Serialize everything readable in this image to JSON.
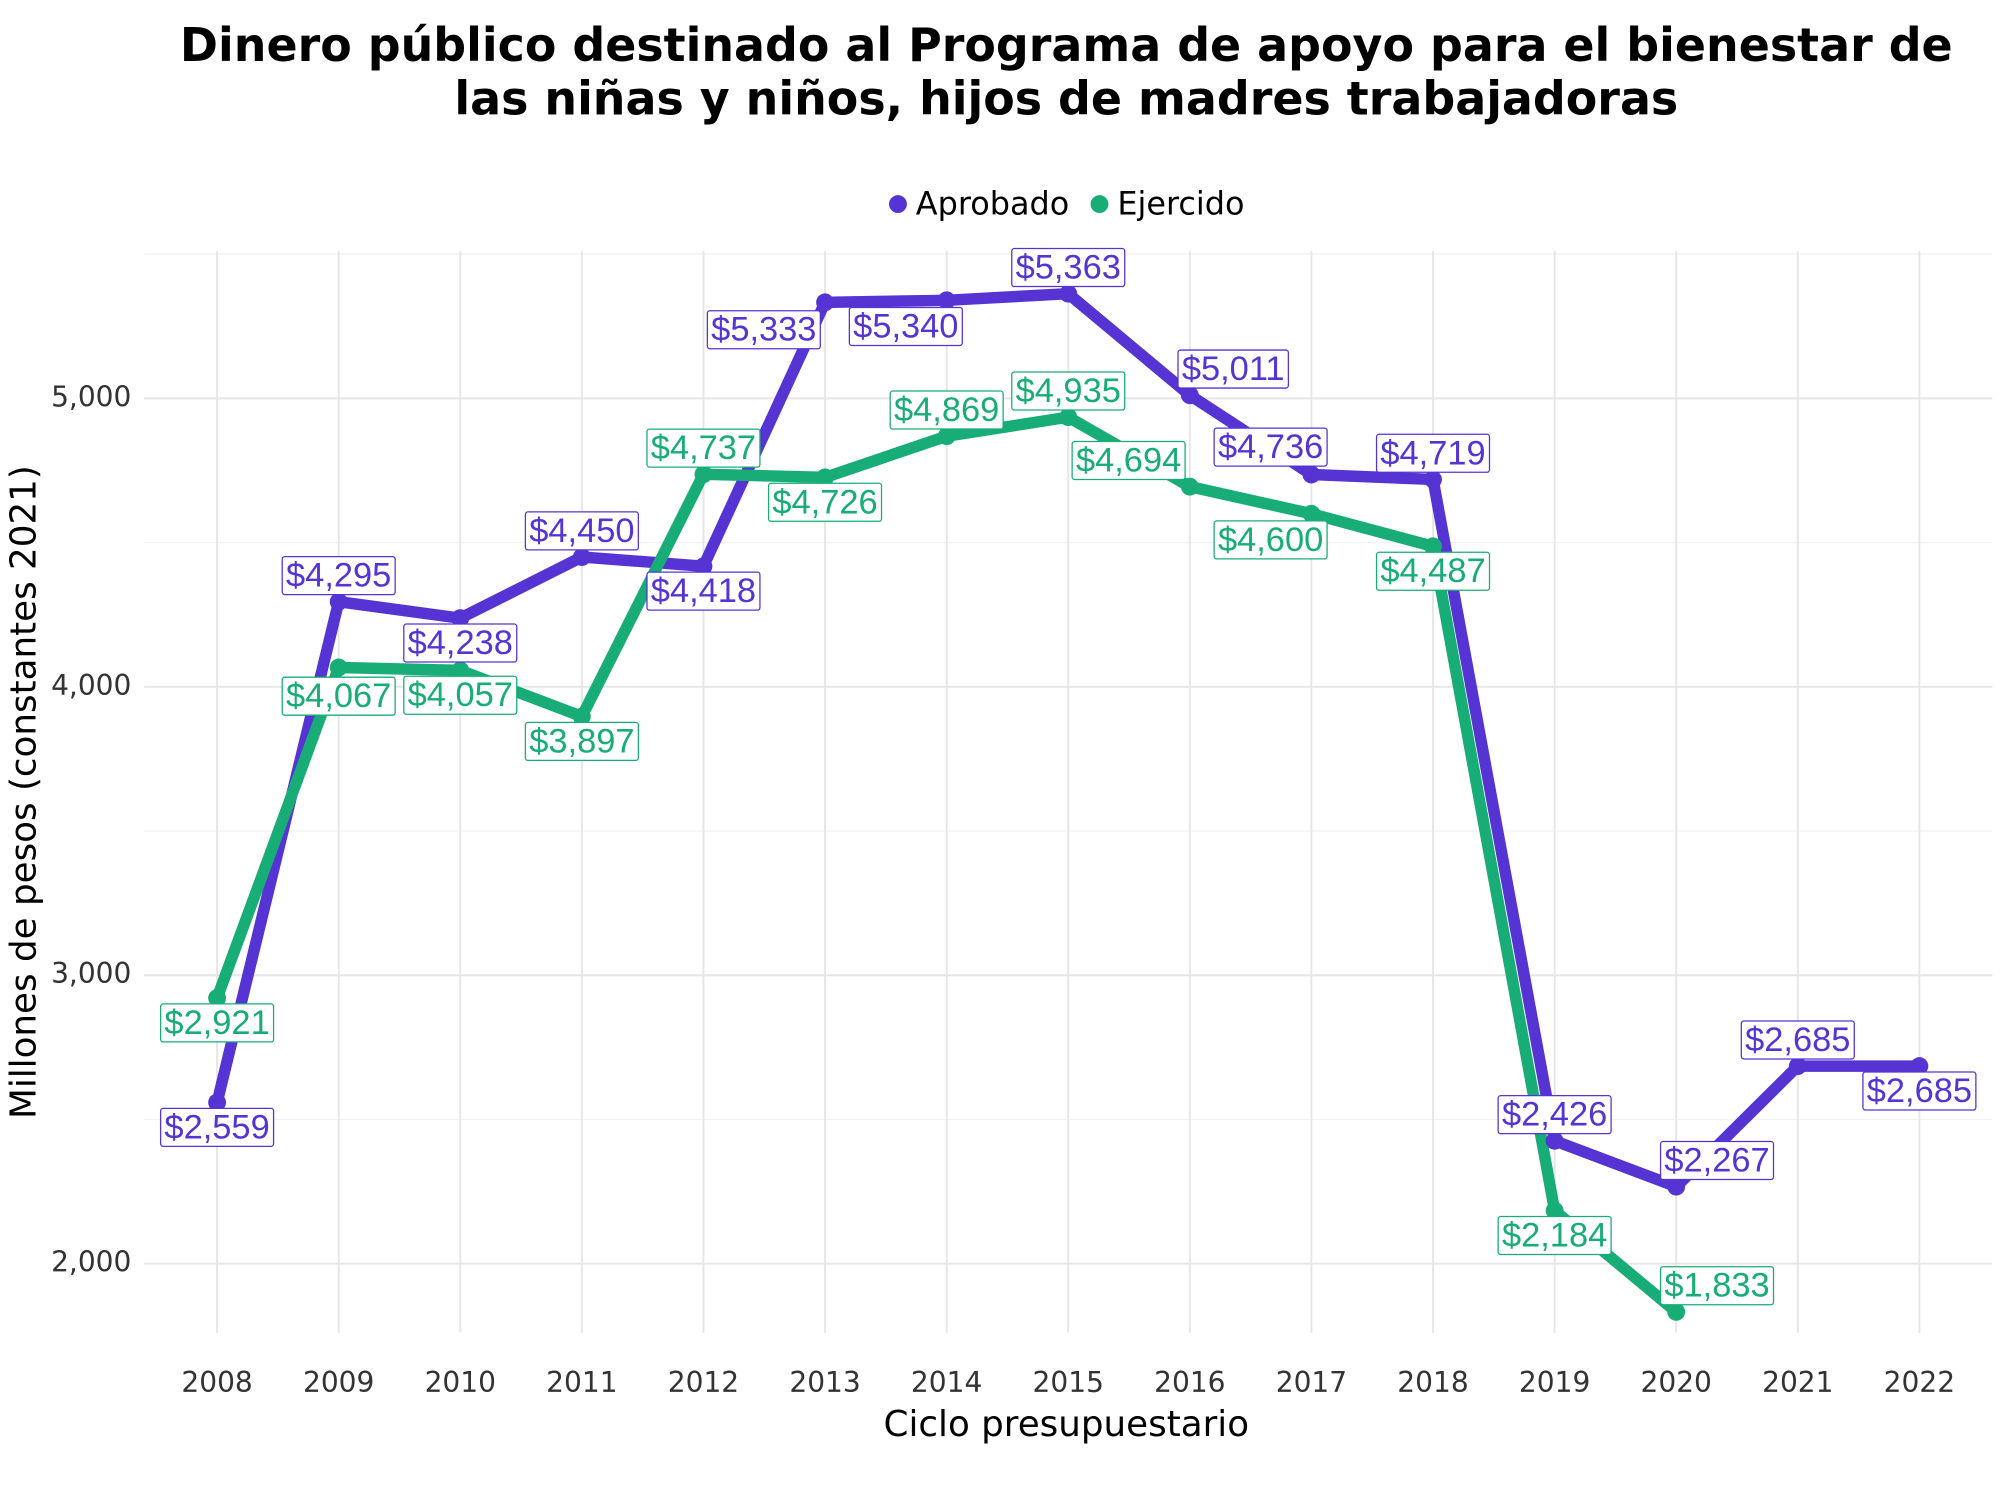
{
  "chart_data": {
    "type": "line",
    "title": [
      "Dinero público destinado al Programa de apoyo para el bienestar de",
      "las niñas y niños, hijos de madres trabajadoras"
    ],
    "x_label": "Ciclo presupuestario",
    "y_label": "Millones de pesos (constantes 2021)",
    "x": [
      2008,
      2009,
      2010,
      2011,
      2012,
      2013,
      2014,
      2015,
      2016,
      2017,
      2018,
      2019,
      2020,
      2021,
      2022
    ],
    "xlim": [
      2007.4,
      2022.6
    ],
    "xticks": [
      2008,
      2009,
      2010,
      2011,
      2012,
      2013,
      2014,
      2015,
      2016,
      2017,
      2018,
      2019,
      2020,
      2021,
      2022
    ],
    "ylim": [
      1760,
      5510
    ],
    "yticks": [
      {
        "value": 2000,
        "label": "2,000"
      },
      {
        "value": 3000,
        "label": "3,000"
      },
      {
        "value": 4000,
        "label": "4,000"
      },
      {
        "value": 5000,
        "label": "5,000"
      }
    ],
    "y_minor_grid": [
      2500,
      3500,
      4500,
      5500
    ],
    "grid": true,
    "legend": "top",
    "series": [
      {
        "name": "Aprobado",
        "color": "#5534d3",
        "values": [
          2559,
          4295,
          4238,
          4450,
          4418,
          5333,
          5340,
          5363,
          5011,
          4736,
          4719,
          2426,
          2267,
          2685,
          2685
        ],
        "value_labels": [
          "$2,559",
          "$4,295",
          "$4,238",
          "$4,450",
          "$4,418",
          "$5,333",
          "$5,340",
          "$5,363",
          "$5,011",
          "$4,736",
          "$4,719",
          "$2,426",
          "$2,267",
          "$2,685",
          "$2,685"
        ]
      },
      {
        "name": "Ejercido",
        "color": "#18ad76",
        "values": [
          2921,
          4067,
          4057,
          3897,
          4737,
          4726,
          4869,
          4935,
          4694,
          4600,
          4487,
          2184,
          1833,
          null,
          null
        ],
        "value_labels": [
          "$2,921",
          "$4,067",
          "$4,057",
          "$3,897",
          "$4,737",
          "$4,726",
          "$4,869",
          "$4,935",
          "$4,694",
          "$4,600",
          "$4,487",
          "$2,184",
          "$1,833",
          null,
          null
        ]
      }
    ]
  }
}
